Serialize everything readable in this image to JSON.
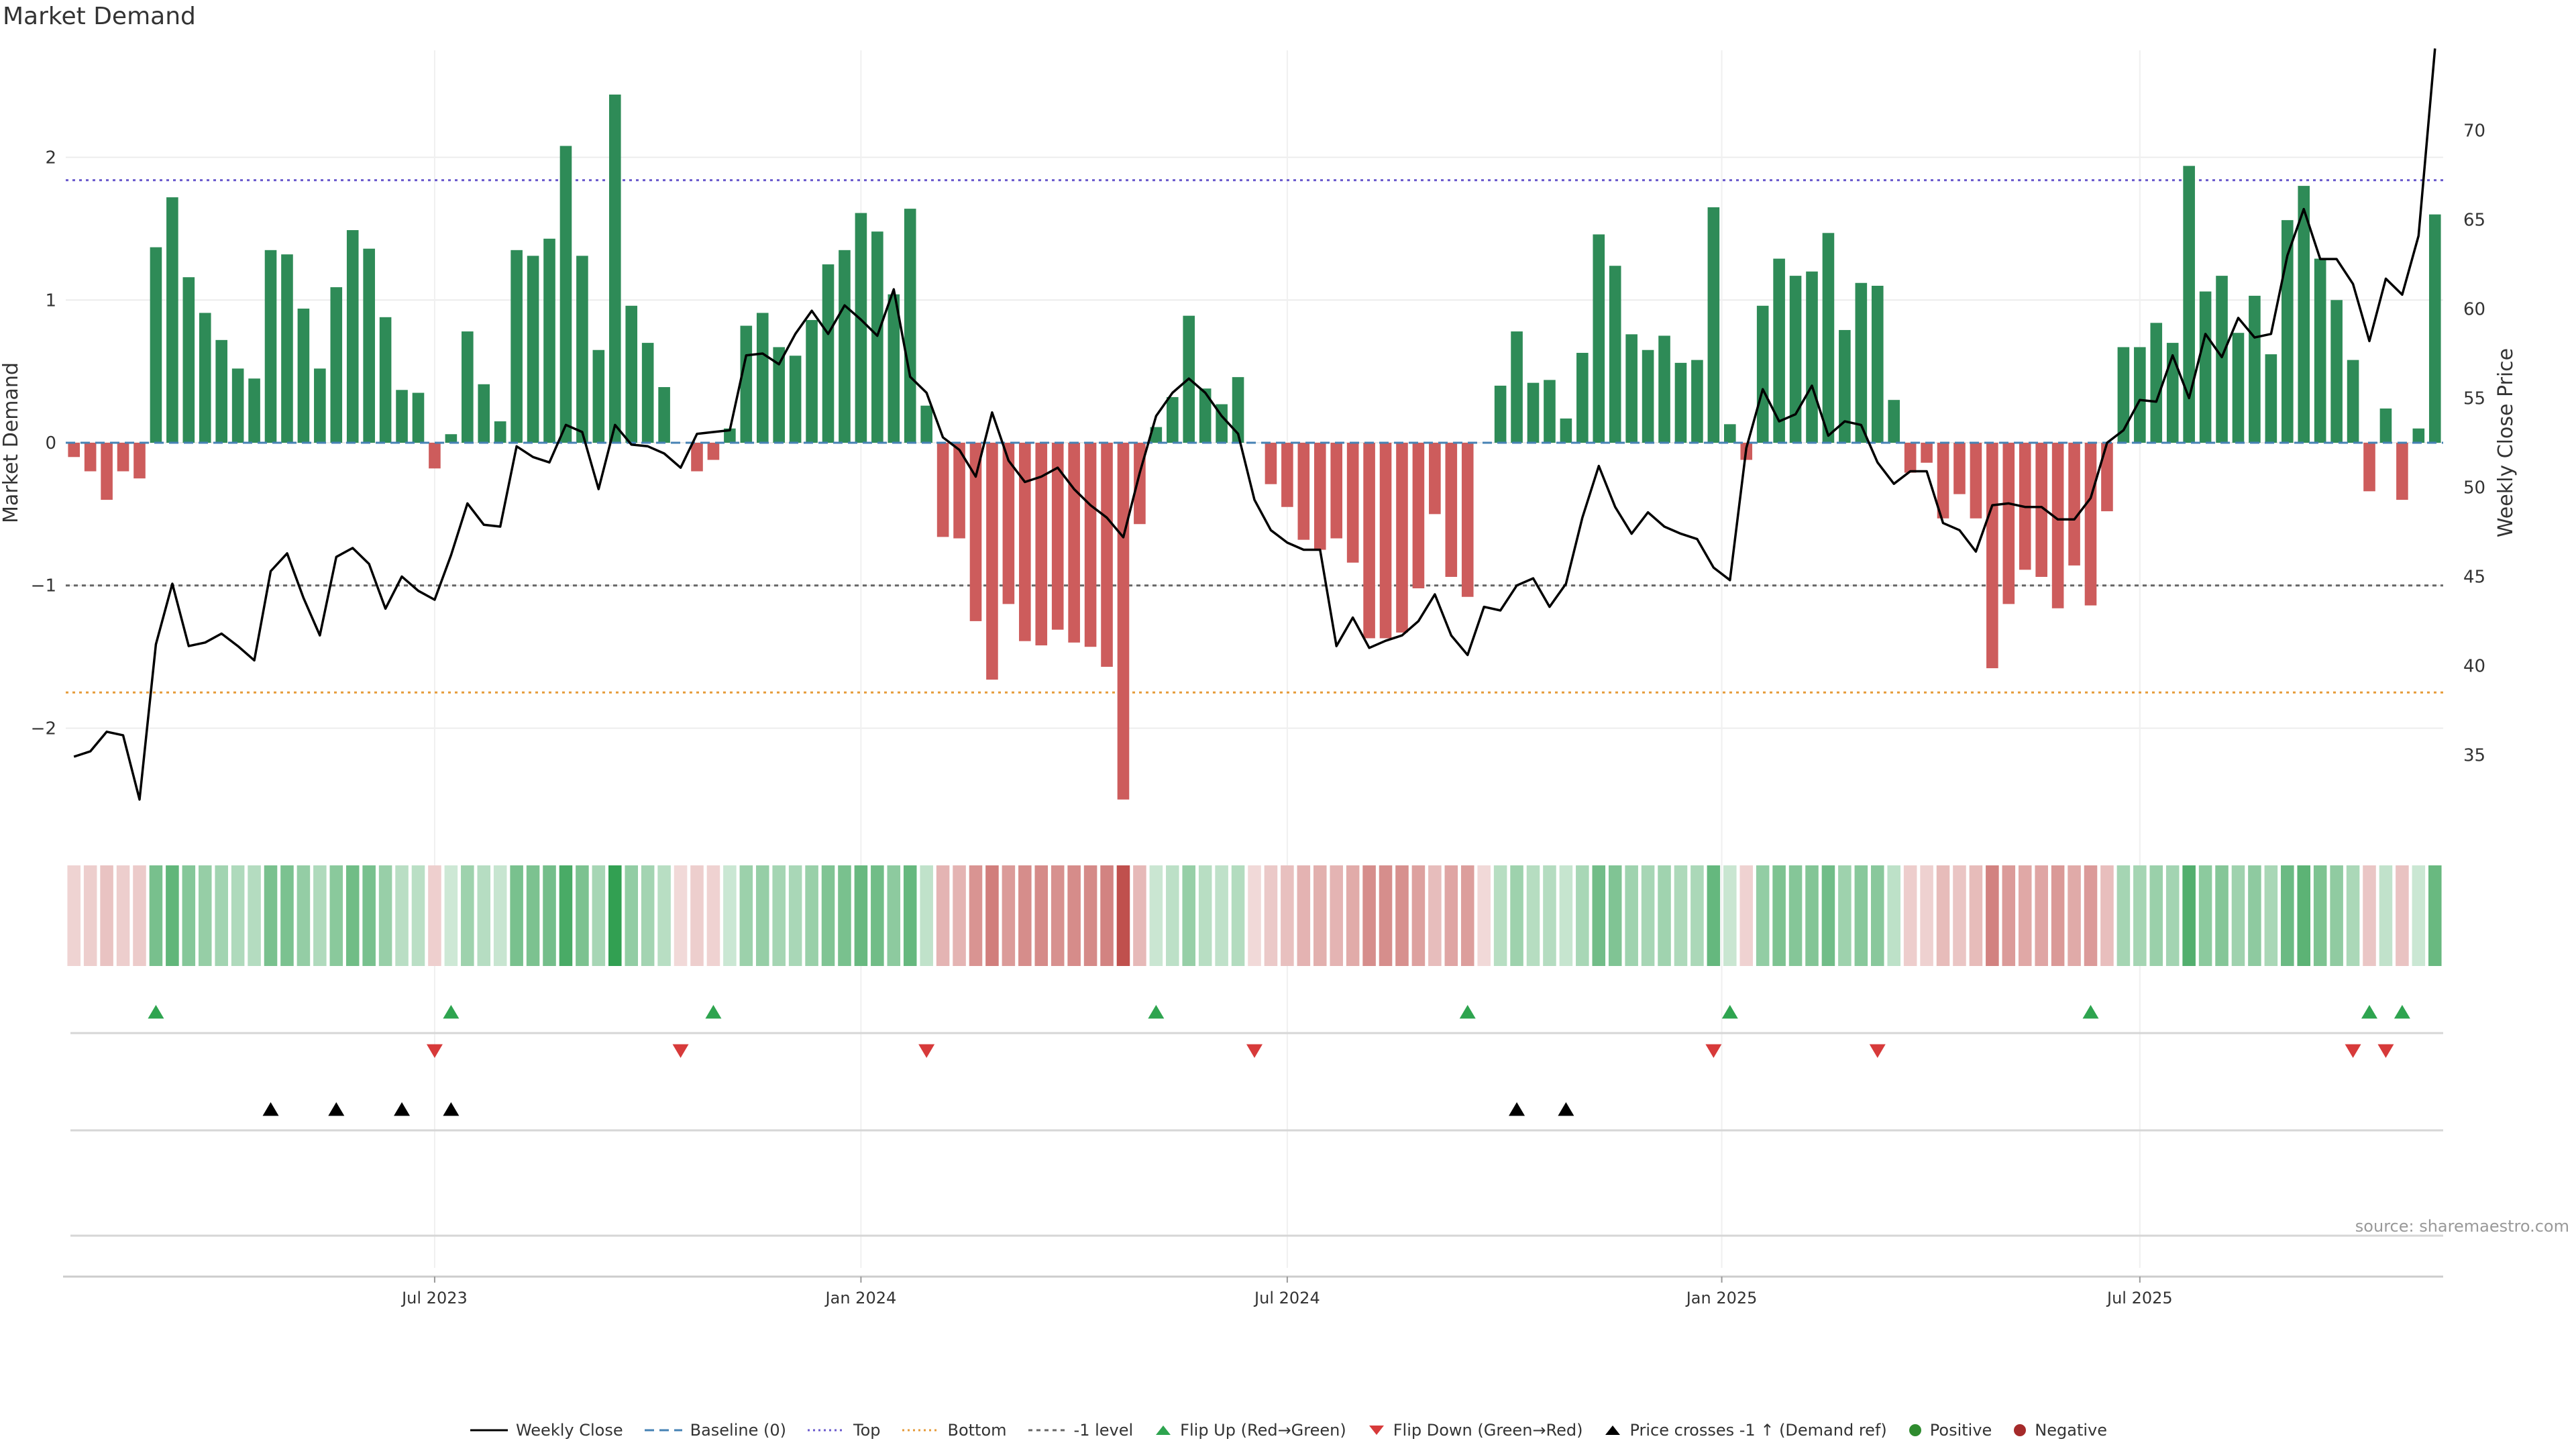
{
  "chart_data": {
    "type": "bar",
    "title": "Market Demand",
    "source": "source: sharemaestro.com",
    "ylabel_left": "Market Demand",
    "ylabel_right": "Weekly Close Price",
    "ylim_left": [
      -2.75,
      2.75
    ],
    "ylim_right": [
      30.5,
      74.5
    ],
    "yticks_left": [
      2,
      1,
      0,
      -1,
      -2
    ],
    "yticks_left_labels": [
      "2",
      "1",
      "0",
      "−1",
      "−2"
    ],
    "yticks_right": [
      70,
      65,
      60,
      55,
      50,
      45,
      40,
      35
    ],
    "reference_lines": {
      "top": 1.84,
      "bottom": -1.75,
      "minus_one": -1,
      "baseline": 0
    },
    "x_tick_labels": [
      "Jul 2023",
      "Jan 2024",
      "Jul 2024",
      "Jan 2025",
      "Jul 2025"
    ],
    "x_tick_index": [
      22,
      48,
      74,
      100.5,
      126
    ],
    "demand": [
      -0.1,
      -0.2,
      -0.4,
      -0.2,
      -0.25,
      1.37,
      1.72,
      1.16,
      0.91,
      0.72,
      0.52,
      0.45,
      1.35,
      1.32,
      0.94,
      0.52,
      1.09,
      1.49,
      1.36,
      0.88,
      0.37,
      0.35,
      -0.18,
      0.06,
      0.78,
      0.41,
      0.15,
      1.35,
      1.31,
      1.43,
      2.08,
      1.31,
      0.65,
      2.44,
      0.96,
      0.7,
      0.39,
      0,
      -0.2,
      -0.12,
      0.1,
      0.82,
      0.91,
      0.67,
      0.61,
      0.86,
      1.25,
      1.35,
      1.61,
      1.48,
      1.04,
      1.64,
      0.26,
      -0.66,
      -0.67,
      -1.25,
      -1.66,
      -1.13,
      -1.39,
      -1.42,
      -1.31,
      -1.4,
      -1.43,
      -1.57,
      -2.5,
      -0.57,
      0.11,
      0.32,
      0.89,
      0.38,
      0.27,
      0.46,
      0,
      -0.29,
      -0.45,
      -0.68,
      -0.75,
      -0.67,
      -0.84,
      -1.37,
      -1.37,
      -1.33,
      -1.02,
      -0.5,
      -0.94,
      -1.08,
      0,
      0.4,
      0.78,
      0.42,
      0.44,
      0.17,
      0.63,
      1.46,
      1.24,
      0.76,
      0.65,
      0.75,
      0.56,
      0.58,
      1.65,
      0.13,
      -0.12,
      0.96,
      1.29,
      1.17,
      1.2,
      1.47,
      0.79,
      1.12,
      1.1,
      0.3,
      -0.21,
      -0.14,
      -0.53,
      -0.36,
      -0.53,
      -1.58,
      -1.13,
      -0.89,
      -0.94,
      -1.16,
      -0.86,
      -1.14,
      -0.48,
      0.67,
      0.67,
      0.84,
      0.7,
      1.94,
      1.06,
      1.17,
      0.77,
      1.03,
      0.62,
      1.56,
      1.8,
      1.29,
      1.0,
      0.58,
      -0.34,
      0.24,
      -0.4,
      0.1,
      1.6
    ],
    "weekly_close": [
      34.9,
      35.2,
      36.3,
      36.1,
      32.5,
      41.2,
      44.6,
      41.1,
      41.3,
      41.8,
      41.1,
      40.3,
      45.3,
      46.3,
      43.8,
      41.7,
      46.1,
      46.6,
      45.7,
      43.2,
      45.0,
      44.2,
      43.7,
      46.2,
      49.1,
      47.9,
      47.8,
      52.3,
      51.7,
      51.4,
      53.5,
      53.1,
      49.9,
      53.5,
      52.4,
      52.3,
      51.9,
      51.1,
      53.0,
      53.1,
      53.2,
      57.4,
      57.5,
      56.9,
      58.6,
      59.9,
      58.6,
      60.2,
      59.4,
      58.5,
      61.1,
      56.2,
      55.3,
      52.8,
      52.1,
      50.6,
      54.2,
      51.5,
      50.3,
      50.6,
      51.1,
      49.9,
      49.0,
      48.3,
      47.2,
      50.8,
      54.0,
      55.3,
      56.1,
      55.3,
      54.0,
      53.0,
      49.3,
      47.6,
      46.9,
      46.5,
      46.5,
      41.1,
      42.7,
      41.0,
      41.4,
      41.7,
      42.5,
      44.0,
      41.7,
      40.6,
      43.3,
      43.1,
      44.5,
      44.9,
      43.3,
      44.6,
      48.3,
      51.2,
      48.9,
      47.4,
      48.6,
      47.8,
      47.4,
      47.1,
      45.5,
      44.8,
      52.2,
      55.5,
      53.7,
      54.1,
      55.7,
      52.9,
      53.7,
      53.5,
      51.4,
      50.2,
      50.9,
      50.9,
      48.0,
      47.6,
      46.4,
      49.0,
      49.1,
      48.9,
      48.9,
      48.2,
      48.2,
      49.4,
      52.5,
      53.2,
      54.9,
      54.8,
      57.4,
      55.0,
      58.6,
      57.3,
      59.5,
      58.4,
      58.6,
      63.0,
      65.6,
      62.8,
      62.8,
      61.4,
      58.2,
      61.7,
      60.8,
      64.1,
      74.6
    ],
    "flip_up_index": [
      5,
      23,
      39,
      66,
      85,
      101,
      123,
      140,
      142
    ],
    "flip_down_index": [
      22,
      37,
      52,
      72,
      100,
      110,
      139,
      141
    ],
    "price_cross_index": [
      12,
      16,
      20,
      23,
      88,
      91
    ],
    "legend": [
      "Weekly Close",
      "Baseline (0)",
      "Top",
      "Bottom",
      "-1 level",
      "Flip Up (Red→Green)",
      "Flip Down (Green→Red)",
      "Price crosses -1 ↑ (Demand ref)",
      "Positive",
      "Negative"
    ]
  },
  "colors": {
    "positive_bar": "#2e8b57",
    "negative_bar": "#cd5c5c",
    "top_line": "#6a5acd",
    "bottom_line": "#e69b3a",
    "baseline": "#4682b4",
    "minus_one_line": "#666666",
    "flip_up": "#2ea44f",
    "flip_down": "#d73a3a",
    "price_cross": "#000000",
    "positive_dot": "#2e8b2e",
    "negative_dot": "#a52a2a"
  }
}
